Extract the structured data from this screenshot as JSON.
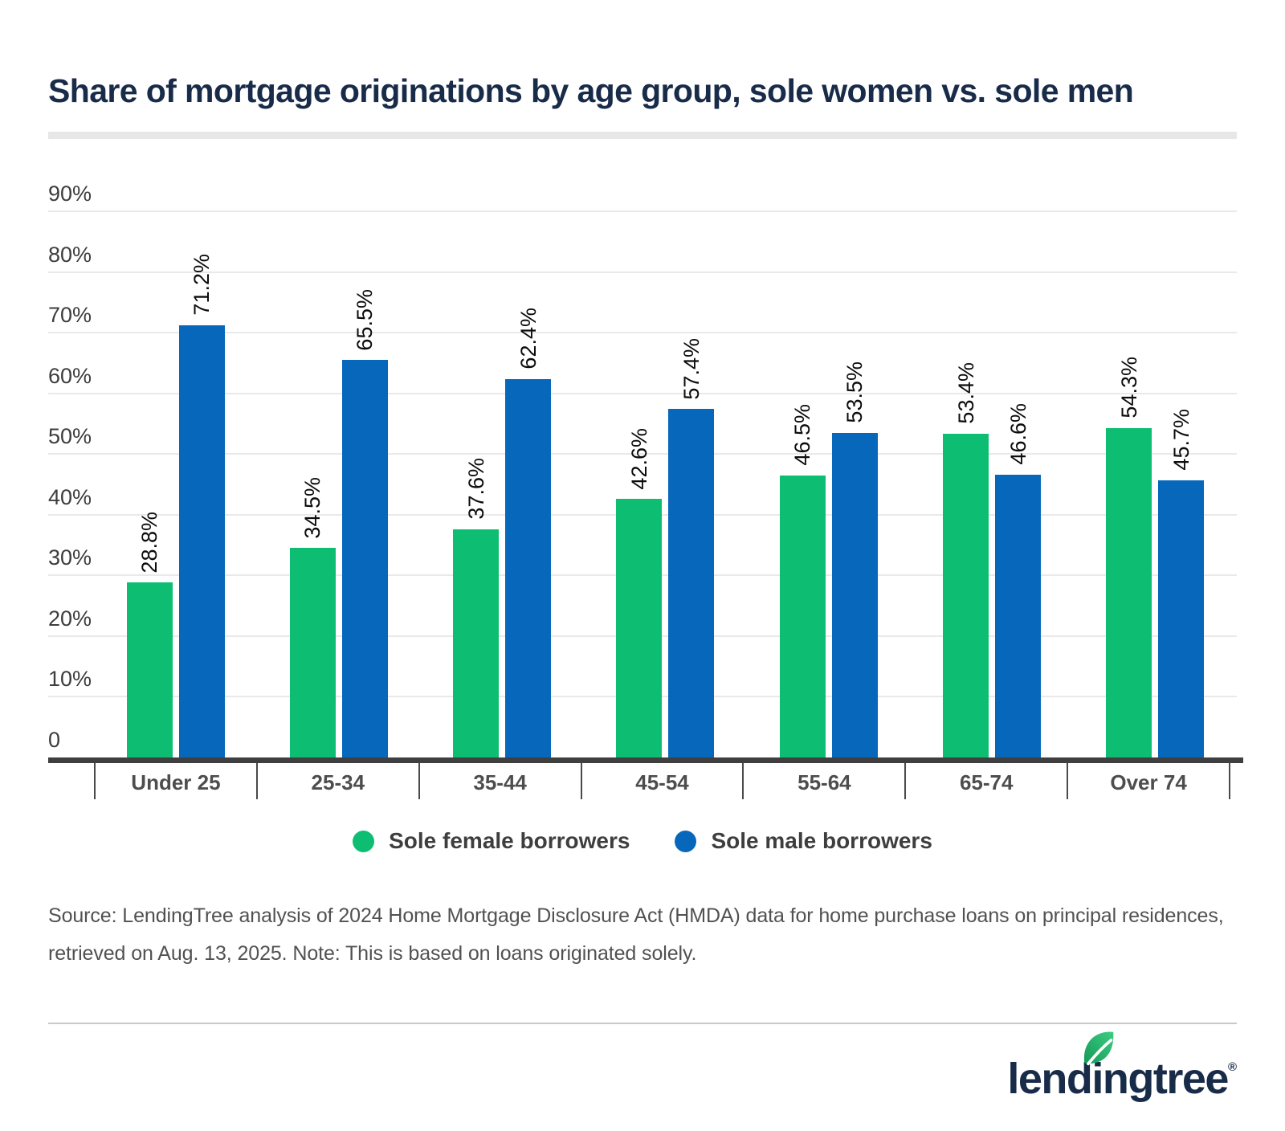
{
  "title": "Share of mortgage originations by age group, sole women vs. sole men",
  "chart_data": {
    "type": "bar",
    "categories": [
      "Under 25",
      "25-34",
      "35-44",
      "45-54",
      "55-64",
      "65-74",
      "Over 74"
    ],
    "series": [
      {
        "name": "Sole female borrowers",
        "color": "#0dbe72",
        "values": [
          28.8,
          34.5,
          37.6,
          42.6,
          46.5,
          53.4,
          54.3
        ]
      },
      {
        "name": "Sole male borrowers",
        "color": "#0768bb",
        "values": [
          71.2,
          65.5,
          62.4,
          57.4,
          53.5,
          46.6,
          45.7
        ]
      }
    ],
    "value_label_suffix": "%",
    "y_ticks": [
      {
        "value": 0,
        "label": "0"
      },
      {
        "value": 10,
        "label": "10%"
      },
      {
        "value": 20,
        "label": "20%"
      },
      {
        "value": 30,
        "label": "30%"
      },
      {
        "value": 40,
        "label": "40%"
      },
      {
        "value": 50,
        "label": "50%"
      },
      {
        "value": 60,
        "label": "60%"
      },
      {
        "value": 70,
        "label": "70%"
      },
      {
        "value": 80,
        "label": "80%"
      },
      {
        "value": 90,
        "label": "90%"
      }
    ],
    "ylim": [
      0,
      90
    ],
    "grid": true,
    "legend_position": "bottom",
    "value_labels_rotated": true
  },
  "source": {
    "lines": [
      "Source: LendingTree analysis of 2024 Home Mortgage Disclosure Act (HMDA) data for home purchase loans on principal residences,",
      "retrieved on Aug. 13, 2025. Note: This is based on loans originated solely."
    ]
  },
  "logo": {
    "text_before_leaf": "lend",
    "leaf_letter": "i",
    "text_after_leaf": "ngtree",
    "registered": "®"
  },
  "colors": {
    "title_navy": "#182b49",
    "female_green": "#0dbe72",
    "male_blue": "#0768bb",
    "axis_dark": "#3f3f3f",
    "gridline_gray": "#e9e9e9"
  }
}
